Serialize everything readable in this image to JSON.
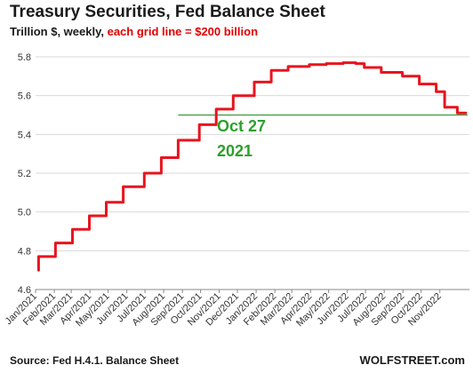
{
  "chart_data": {
    "type": "line",
    "title": "Treasury Securities, Fed Balance Sheet",
    "subtitle_plain": "Trillion $, weekly,",
    "subtitle_highlight": "each grid line = $200 billion",
    "ylim": [
      4.6,
      5.8
    ],
    "yticks": [
      "4.6",
      "4.8",
      "5.0",
      "5.2",
      "5.4",
      "5.6",
      "5.8"
    ],
    "x_labels": [
      "Jan/2021",
      "Feb/2021",
      "Mar/2021",
      "Apr/2021",
      "May/2021",
      "Jun/2021",
      "Jul/2021",
      "Aug/2021",
      "Sep/2021",
      "Oct/2021",
      "Nov/2021",
      "Dec/2021",
      "Jan/2022",
      "Feb/2022",
      "Mar/2022",
      "Apr/2022",
      "May/2022",
      "Jun/2022",
      "Jul/2022",
      "Aug/2022",
      "Sep/2022",
      "Oct/2022",
      "Nov/2022"
    ],
    "series": [
      {
        "color": "#e8141e",
        "x": [
          "2021-01-06",
          "2021-02-03",
          "2021-03-03",
          "2021-03-31",
          "2021-04-28",
          "2021-05-26",
          "2021-06-30",
          "2021-07-28",
          "2021-08-25",
          "2021-09-29",
          "2021-10-27",
          "2021-11-24",
          "2021-12-29",
          "2022-01-26",
          "2022-02-23",
          "2022-03-30",
          "2022-04-27",
          "2022-05-25",
          "2022-06-15",
          "2022-06-29",
          "2022-07-27",
          "2022-08-31",
          "2022-09-28",
          "2022-10-26",
          "2022-11-09",
          "2022-11-30",
          "2022-12-14"
        ],
        "y": [
          4.7,
          4.77,
          4.84,
          4.91,
          4.98,
          5.05,
          5.13,
          5.2,
          5.28,
          5.37,
          5.45,
          5.53,
          5.6,
          5.67,
          5.73,
          5.75,
          5.76,
          5.765,
          5.77,
          5.765,
          5.745,
          5.72,
          5.7,
          5.66,
          5.62,
          5.54,
          5.51
        ]
      }
    ],
    "reference_line": {
      "y": 5.5,
      "x_start": "2021-08-25",
      "x_end": "2022-12-17",
      "color": "#3a9a3a"
    },
    "annotation": {
      "line1": "Oct 27",
      "line2": "2021",
      "color": "#2ca02c"
    },
    "grid": "horizontal",
    "legend": "none"
  },
  "footer": {
    "source": "Source: Fed H.4.1. Balance Sheet",
    "brand": "WOLFSTREET.com"
  }
}
